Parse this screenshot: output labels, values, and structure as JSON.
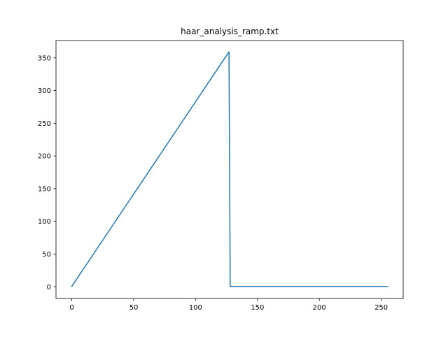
{
  "chart_data": {
    "type": "line",
    "title": "haar_analysis_ramp.txt",
    "xlabel": "",
    "ylabel": "",
    "xlim": [
      -12.75,
      267.75
    ],
    "ylim": [
      -17.9,
      376.5
    ],
    "xticks": [
      0,
      50,
      100,
      150,
      200,
      250
    ],
    "yticks": [
      0,
      50,
      100,
      150,
      200,
      250,
      300,
      350
    ],
    "grid": false,
    "series": [
      {
        "color": "#1f77b4",
        "x": [
          0,
          127,
          128,
          255
        ],
        "y": [
          0.6,
          359.2,
          0.6,
          0.6
        ]
      }
    ]
  }
}
